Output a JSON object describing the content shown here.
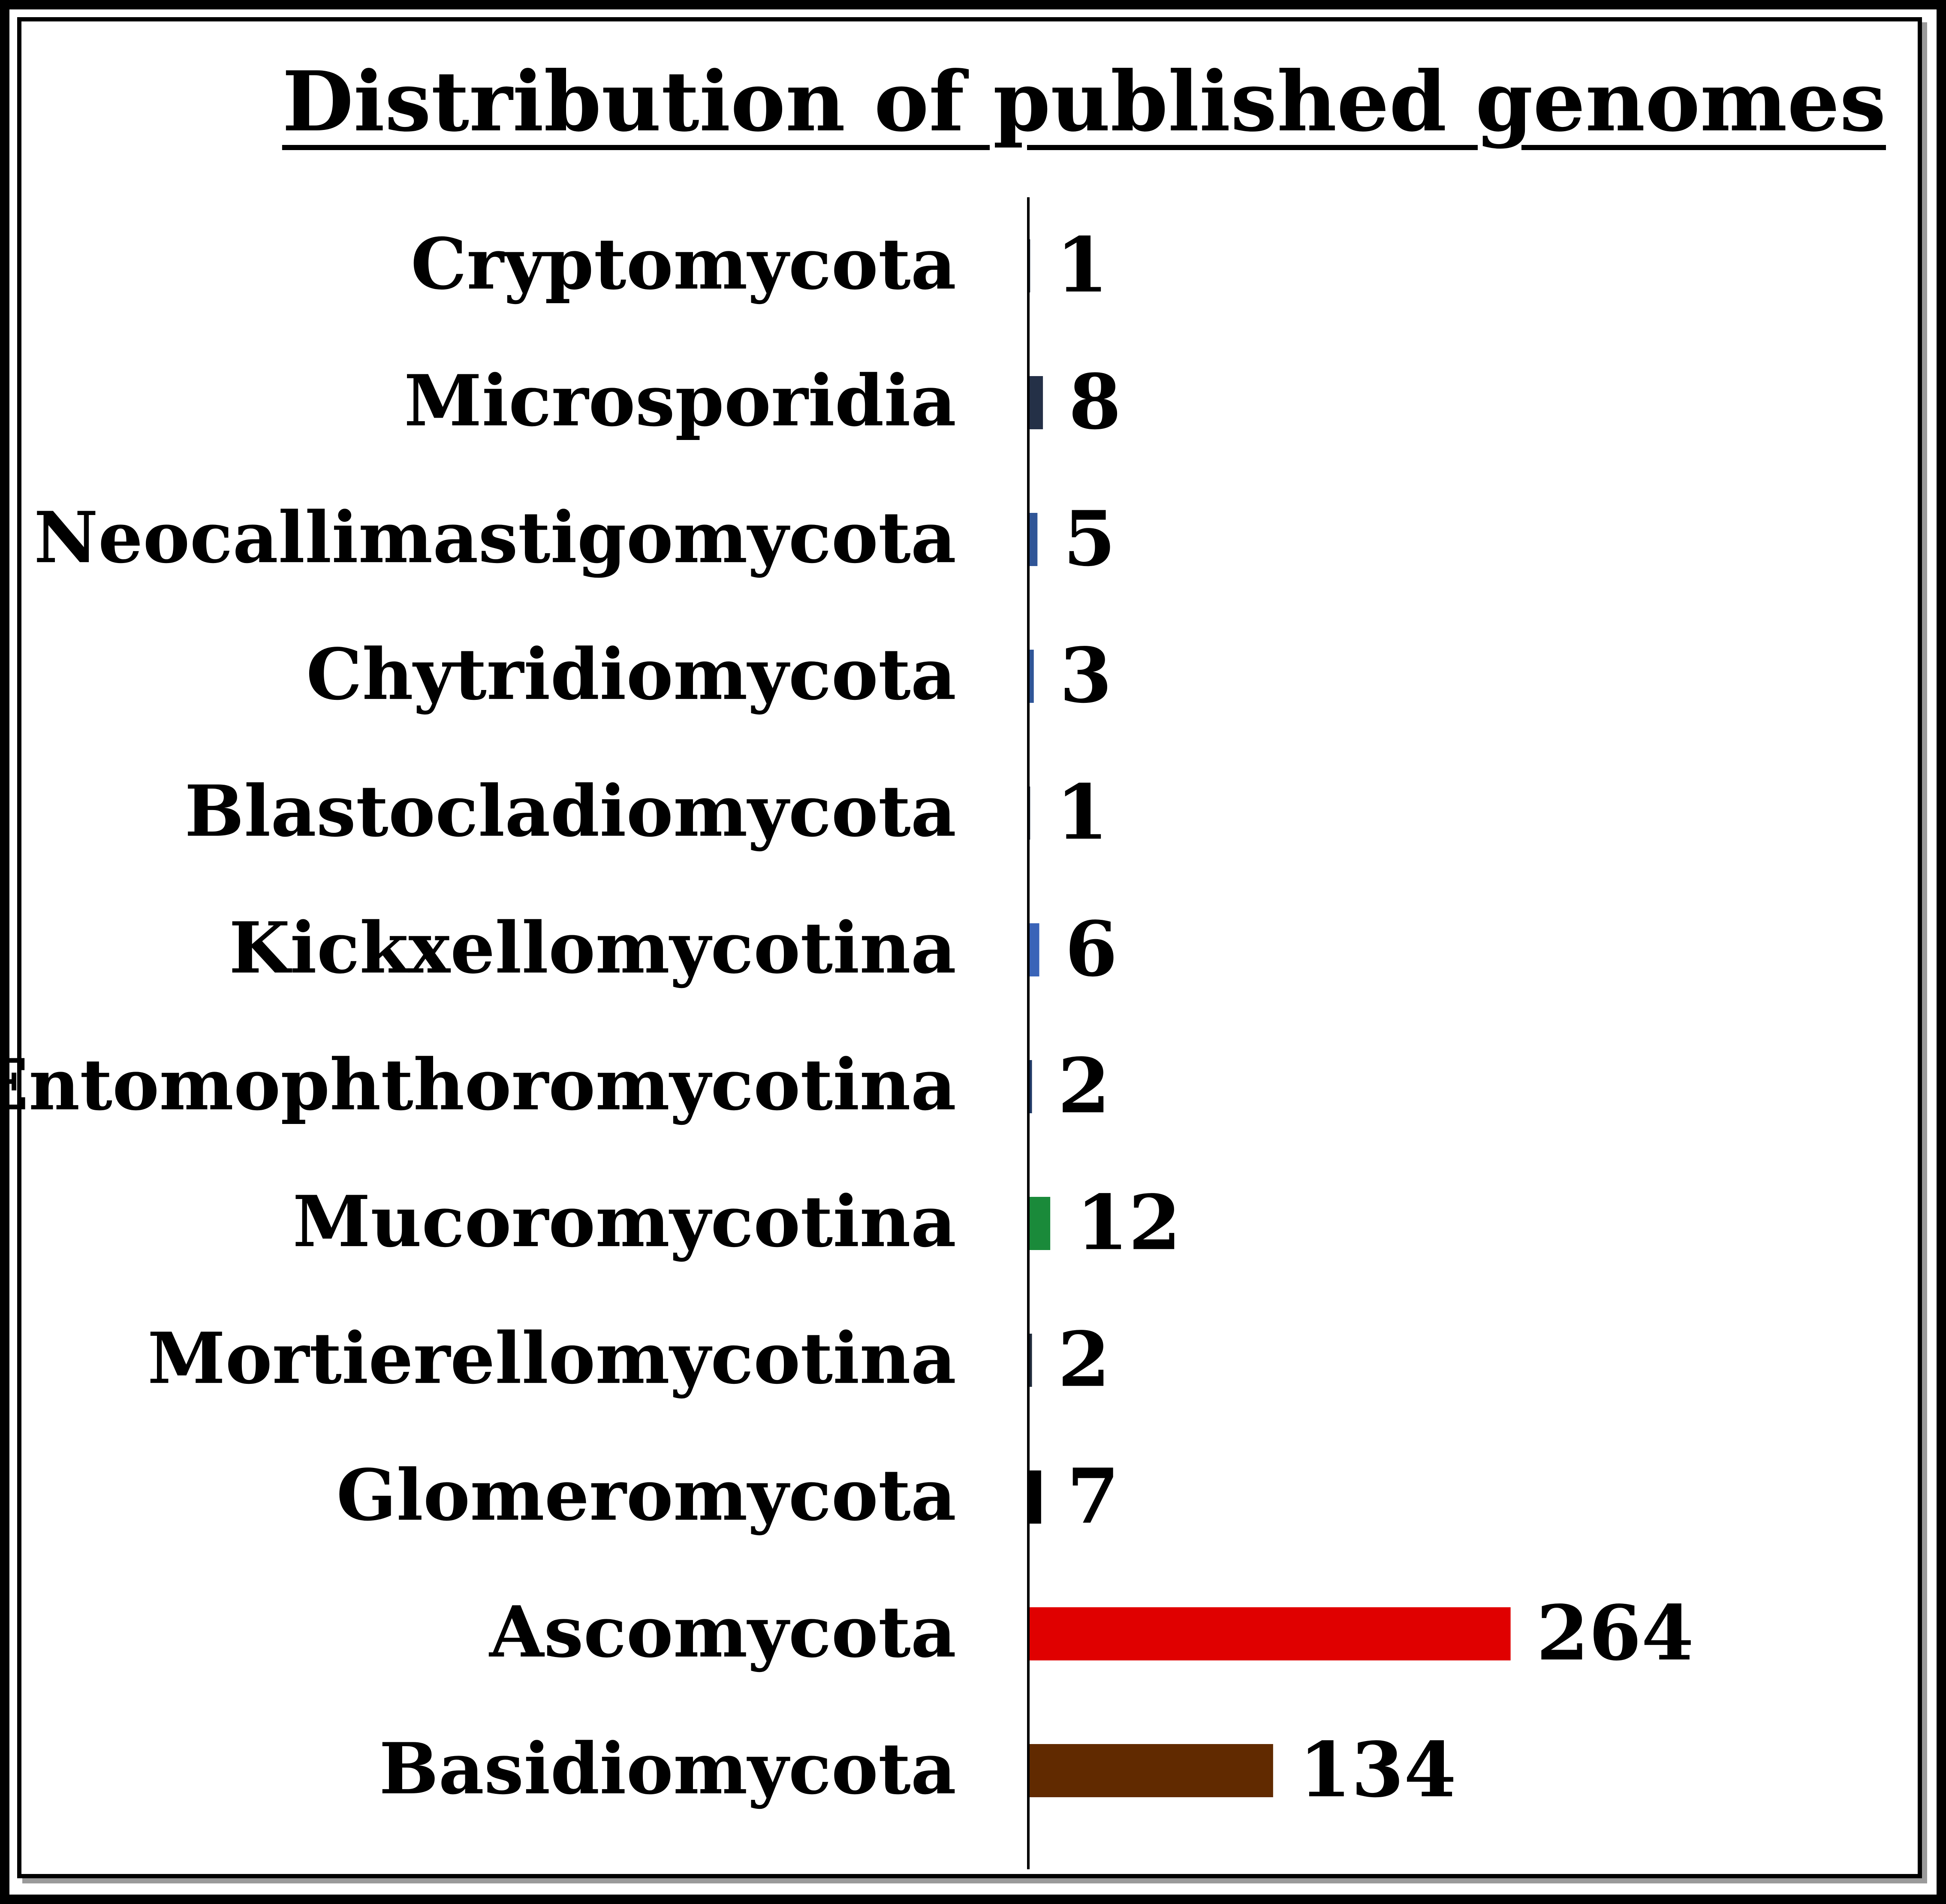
{
  "chart_data": {
    "type": "bar",
    "orientation": "horizontal",
    "title": "Distribution of  published genomes",
    "xlabel": "",
    "ylabel": "",
    "categories": [
      "Cryptomycota",
      "Microsporidia",
      "Neocallimastigomycota",
      "Chytridiomycota",
      "Blastocladiomycota",
      "Kickxellomycotina",
      "Entomophthoromycotina",
      "Mucoromycotina",
      "Mortierellomycotina",
      "Glomeromycota",
      "Ascomycota",
      "Basidiomycota"
    ],
    "values": [
      1,
      8,
      5,
      3,
      1,
      6,
      2,
      12,
      2,
      7,
      264,
      134
    ],
    "colors": [
      "#1f2a3a",
      "#243047",
      "#2f5597",
      "#2f5597",
      "#1f2a3a",
      "#3a64b8",
      "#1f3864",
      "#1a8a3a",
      "#1f2a3a",
      "#000000",
      "#e00000",
      "#612a00"
    ],
    "xlim": [
      0,
      300
    ],
    "grid": false,
    "legend": "none",
    "data_labels": true
  }
}
